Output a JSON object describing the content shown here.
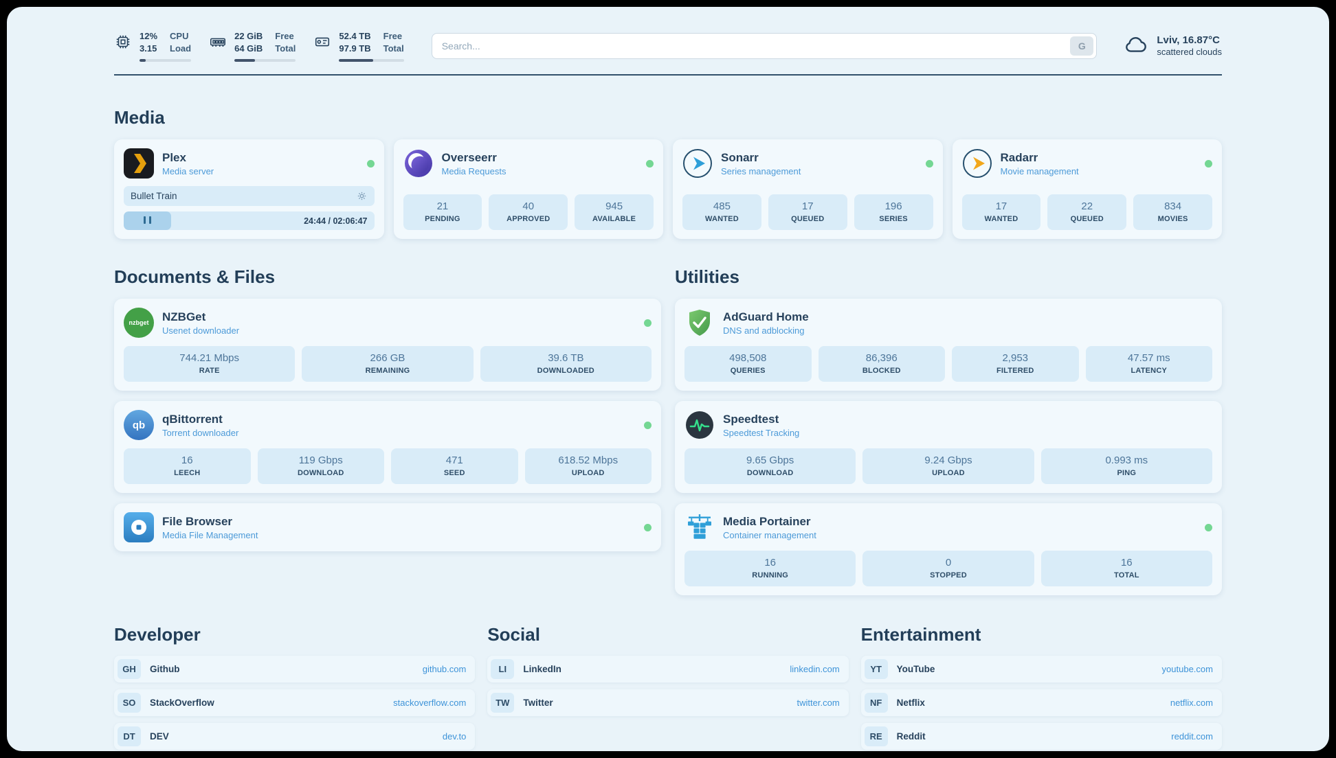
{
  "colors": {
    "accent": "#3d93d8",
    "status_online": "#74d793",
    "background": "#e9f3f9",
    "chip": "#d9ecf8"
  },
  "topbar": {
    "cpu": {
      "value": "12%",
      "sub": "3.15",
      "label_top": "CPU",
      "label_bottom": "Load",
      "percent": 12
    },
    "ram": {
      "value": "22 GiB",
      "sub": "64 GiB",
      "label_top": "Free",
      "label_bottom": "Total",
      "percent": 34
    },
    "disk": {
      "value": "52.4 TB",
      "sub": "97.9 TB",
      "label_top": "Free",
      "label_bottom": "Total",
      "percent": 53
    },
    "search": {
      "placeholder": "Search...",
      "button_label": "G"
    },
    "weather": {
      "location": "Lviv, 16.87°C",
      "condition": "scattered clouds"
    }
  },
  "media": {
    "heading": "Media",
    "plex": {
      "title": "Plex",
      "subtitle": "Media server",
      "now_playing": "Bullet Train",
      "time": "24:44 / 02:06:47",
      "progress_percent": 19
    },
    "overseerr": {
      "title": "Overseerr",
      "subtitle": "Media Requests",
      "stats": [
        {
          "value": "21",
          "label": "PENDING"
        },
        {
          "value": "40",
          "label": "APPROVED"
        },
        {
          "value": "945",
          "label": "AVAILABLE"
        }
      ]
    },
    "sonarr": {
      "title": "Sonarr",
      "subtitle": "Series management",
      "stats": [
        {
          "value": "485",
          "label": "WANTED"
        },
        {
          "value": "17",
          "label": "QUEUED"
        },
        {
          "value": "196",
          "label": "SERIES"
        }
      ]
    },
    "radarr": {
      "title": "Radarr",
      "subtitle": "Movie management",
      "stats": [
        {
          "value": "17",
          "label": "WANTED"
        },
        {
          "value": "22",
          "label": "QUEUED"
        },
        {
          "value": "834",
          "label": "MOVIES"
        }
      ]
    }
  },
  "documents": {
    "heading": "Documents & Files",
    "nzbget": {
      "title": "NZBGet",
      "subtitle": "Usenet downloader",
      "icon_text": "nzbget",
      "stats": [
        {
          "value": "744.21 Mbps",
          "label": "RATE"
        },
        {
          "value": "266 GB",
          "label": "REMAINING"
        },
        {
          "value": "39.6 TB",
          "label": "DOWNLOADED"
        }
      ]
    },
    "qbittorrent": {
      "title": "qBittorrent",
      "subtitle": "Torrent downloader",
      "icon_text": "qb",
      "stats": [
        {
          "value": "16",
          "label": "LEECH"
        },
        {
          "value": "119 Gbps",
          "label": "DOWNLOAD"
        },
        {
          "value": "471",
          "label": "SEED"
        },
        {
          "value": "618.52 Mbps",
          "label": "UPLOAD"
        }
      ]
    },
    "filebrowser": {
      "title": "File Browser",
      "subtitle": "Media File Management"
    }
  },
  "utilities": {
    "heading": "Utilities",
    "adguard": {
      "title": "AdGuard Home",
      "subtitle": "DNS and adblocking",
      "stats": [
        {
          "value": "498,508",
          "label": "QUERIES"
        },
        {
          "value": "86,396",
          "label": "BLOCKED"
        },
        {
          "value": "2,953",
          "label": "FILTERED"
        },
        {
          "value": "47.57 ms",
          "label": "LATENCY"
        }
      ]
    },
    "speedtest": {
      "title": "Speedtest",
      "subtitle": "Speedtest Tracking",
      "stats": [
        {
          "value": "9.65 Gbps",
          "label": "DOWNLOAD"
        },
        {
          "value": "9.24 Gbps",
          "label": "UPLOAD"
        },
        {
          "value": "0.993 ms",
          "label": "PING"
        }
      ]
    },
    "portainer": {
      "title": "Media Portainer",
      "subtitle": "Container management",
      "stats": [
        {
          "value": "16",
          "label": "RUNNING"
        },
        {
          "value": "0",
          "label": "STOPPED"
        },
        {
          "value": "16",
          "label": "TOTAL"
        }
      ]
    }
  },
  "bookmarks": {
    "developer": {
      "heading": "Developer",
      "links": [
        {
          "abbr": "GH",
          "name": "Github",
          "url": "github.com"
        },
        {
          "abbr": "SO",
          "name": "StackOverflow",
          "url": "stackoverflow.com"
        },
        {
          "abbr": "DT",
          "name": "DEV",
          "url": "dev.to"
        }
      ]
    },
    "social": {
      "heading": "Social",
      "links": [
        {
          "abbr": "LI",
          "name": "LinkedIn",
          "url": "linkedin.com"
        },
        {
          "abbr": "TW",
          "name": "Twitter",
          "url": "twitter.com"
        }
      ]
    },
    "entertainment": {
      "heading": "Entertainment",
      "links": [
        {
          "abbr": "YT",
          "name": "YouTube",
          "url": "youtube.com"
        },
        {
          "abbr": "NF",
          "name": "Netflix",
          "url": "netflix.com"
        },
        {
          "abbr": "RE",
          "name": "Reddit",
          "url": "reddit.com"
        }
      ]
    }
  }
}
